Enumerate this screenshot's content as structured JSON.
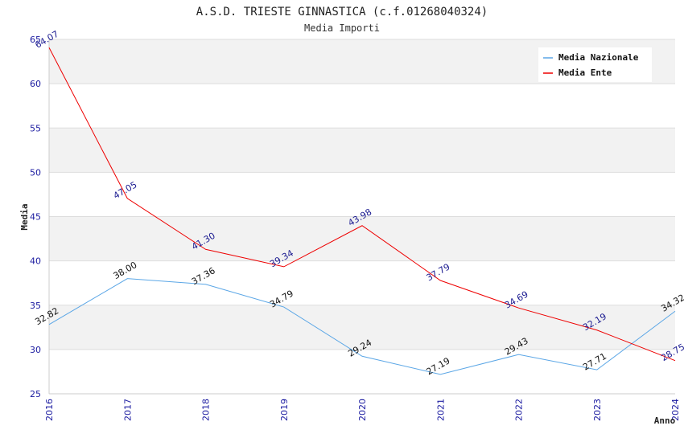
{
  "chart_data": {
    "type": "line",
    "title": "A.S.D. TRIESTE GINNASTICA (c.f.01268040324)",
    "subtitle": "Media Importi",
    "xlabel": "Anno",
    "ylabel": "Media",
    "categories": [
      "2016",
      "2017",
      "2018",
      "2019",
      "2020",
      "2021",
      "2022",
      "2023",
      "2024"
    ],
    "y_ticks": [
      "25",
      "30",
      "35",
      "40",
      "45",
      "50",
      "55",
      "60",
      "65"
    ],
    "ylim": [
      25,
      65
    ],
    "grid": "horizontal bands",
    "legend_position": "top-right",
    "series": [
      {
        "name": "Media Nazionale",
        "color": "#5aa6e6",
        "values": [
          32.82,
          38.0,
          37.36,
          34.79,
          29.24,
          27.19,
          29.43,
          27.71,
          34.32
        ],
        "labels": [
          "32.82",
          "38.00",
          "37.36",
          "34.79",
          "29.24",
          "27.19",
          "29.43",
          "27.71",
          "34.32"
        ]
      },
      {
        "name": "Media Ente",
        "color": "#ee0000",
        "values": [
          64.07,
          47.05,
          41.3,
          39.34,
          43.98,
          37.79,
          34.69,
          32.19,
          28.75
        ],
        "labels": [
          "64.07",
          "47.05",
          "41.30",
          "39.34",
          "43.98",
          "37.79",
          "34.69",
          "32.19",
          "28.75"
        ]
      }
    ]
  }
}
